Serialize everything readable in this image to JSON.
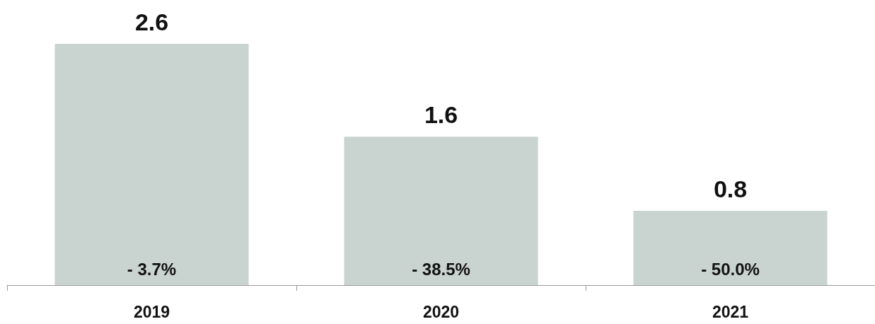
{
  "chart_data": {
    "type": "bar",
    "categories": [
      "2019",
      "2020",
      "2021"
    ],
    "values": [
      2.6,
      1.6,
      0.8
    ],
    "color": "#c9d3d0",
    "data_labels": true,
    "annotations": [
      "- 3.7%",
      "- 38.5%",
      "- 50.0%"
    ]
  }
}
